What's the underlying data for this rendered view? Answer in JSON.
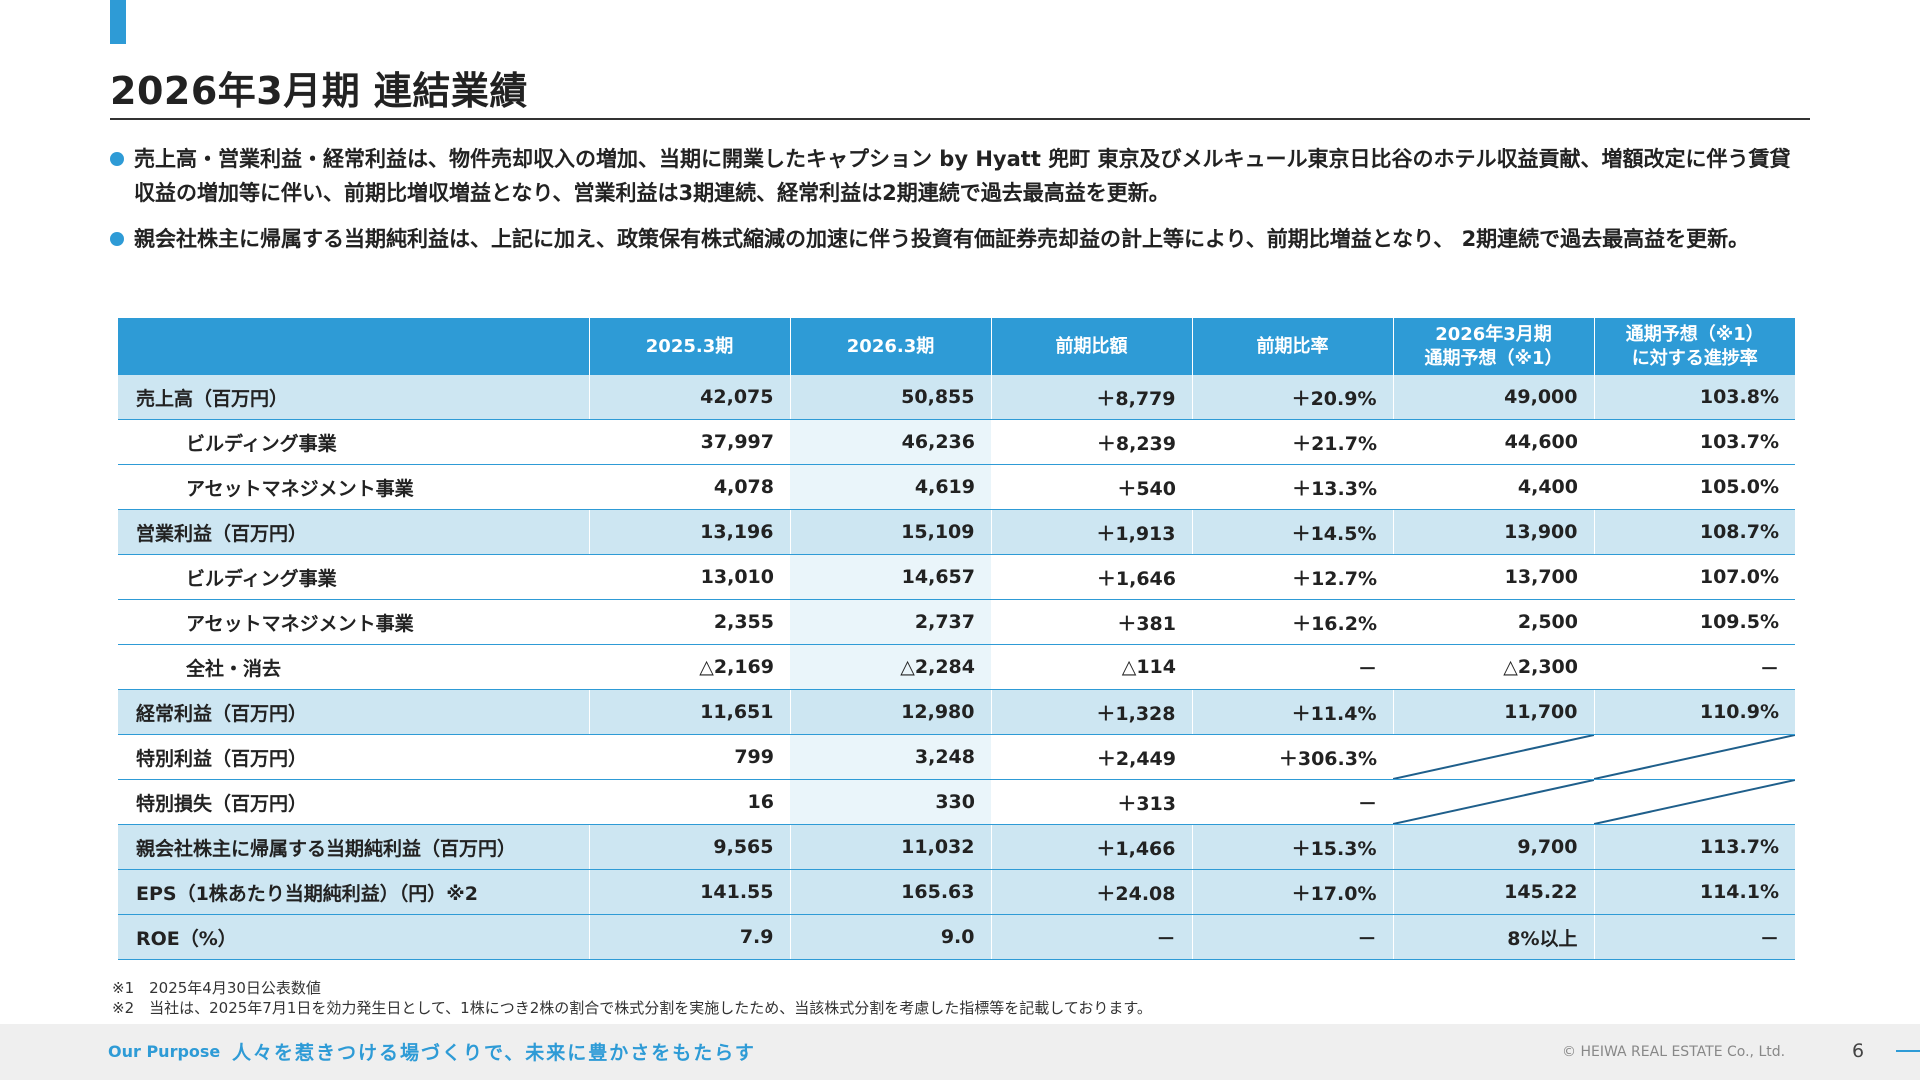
{
  "title": "2026年3月期 連結業績",
  "bullets": [
    "売上高・営業利益・経常利益は、物件売却収入の増加、当期に開業したキャプション by Hyatt 兜町 東京及びメルキュール東京日比谷のホテル収益貢献、増額改定に伴う賃貸収益の増加等に伴い、前期比増収増益となり、営業利益は3期連続、経常利益は2期連続で過去最高益を更新。",
    "親会社株主に帰属する当期純利益は、上記に加え、政策保有株式縮減の加速に伴う投資有価証券売却益の計上等により、前期比増益となり、 2期連続で過去最高益を更新。"
  ],
  "table": {
    "headers": [
      "",
      "2025.3期",
      "2026.3期",
      "前期比額",
      "前期比率",
      "2026年3月期\n通期予想（※1）",
      "通期予想（※1）\nに対する進捗率"
    ],
    "rows": [
      {
        "label": "売上高（百万円）",
        "type": "main",
        "values": [
          "42,075",
          "50,855",
          "＋8,779",
          "＋20.9%",
          "49,000",
          "103.8%"
        ]
      },
      {
        "label": "ビルディング事業",
        "type": "sub",
        "values": [
          "37,997",
          "46,236",
          "＋8,239",
          "＋21.7%",
          "44,600",
          "103.7%"
        ]
      },
      {
        "label": "アセットマネジメント事業",
        "type": "sub",
        "values": [
          "4,078",
          "4,619",
          "＋540",
          "＋13.3%",
          "4,400",
          "105.0%"
        ]
      },
      {
        "label": "営業利益（百万円）",
        "type": "main",
        "values": [
          "13,196",
          "15,109",
          "＋1,913",
          "＋14.5%",
          "13,900",
          "108.7%"
        ]
      },
      {
        "label": "ビルディング事業",
        "type": "sub",
        "values": [
          "13,010",
          "14,657",
          "＋1,646",
          "＋12.7%",
          "13,700",
          "107.0%"
        ]
      },
      {
        "label": "アセットマネジメント事業",
        "type": "sub",
        "values": [
          "2,355",
          "2,737",
          "＋381",
          "＋16.2%",
          "2,500",
          "109.5%"
        ]
      },
      {
        "label": "全社・消去",
        "type": "sub",
        "values": [
          "△2,169",
          "△2,284",
          "△114",
          "－",
          "△2,300",
          "－"
        ]
      },
      {
        "label": "経常利益（百万円）",
        "type": "main",
        "values": [
          "11,651",
          "12,980",
          "＋1,328",
          "＋11.4%",
          "11,700",
          "110.9%"
        ]
      },
      {
        "label": "特別利益（百万円）",
        "type": "plain",
        "values": [
          "799",
          "3,248",
          "＋2,449",
          "＋306.3%",
          "",
          ""
        ]
      },
      {
        "label": "特別損失（百万円）",
        "type": "plain",
        "values": [
          "16",
          "330",
          "＋313",
          "－",
          "",
          ""
        ]
      },
      {
        "label": "親会社株主に帰属する当期純利益（百万円）",
        "type": "main",
        "values": [
          "9,565",
          "11,032",
          "＋1,466",
          "＋15.3%",
          "9,700",
          "113.7%"
        ]
      },
      {
        "label": "EPS（1株あたり当期純利益）（円）※2",
        "type": "main",
        "values": [
          "141.55",
          "165.63",
          "＋24.08",
          "＋17.0%",
          "145.22",
          "114.1%"
        ]
      },
      {
        "label": "ROE（%）",
        "type": "main",
        "values": [
          "7.9",
          "9.0",
          "－",
          "－",
          "8%以上",
          "－"
        ]
      }
    ]
  },
  "notes": [
    "※1　2025年4月30日公表数値",
    "※2　当社は、2025年7月1日を効力発生日として、1株につき2株の割合で株式分割を実施したため、当該株式分割を考慮した指標等を記載しております。"
  ],
  "footer": {
    "purpose_label": "Our Purpose",
    "purpose_text": "人々を惹きつける場づくりで、未来に豊かさをもたらす",
    "copyright": "© HEIWA REAL ESTATE Co., Ltd.",
    "page_number": "6"
  }
}
